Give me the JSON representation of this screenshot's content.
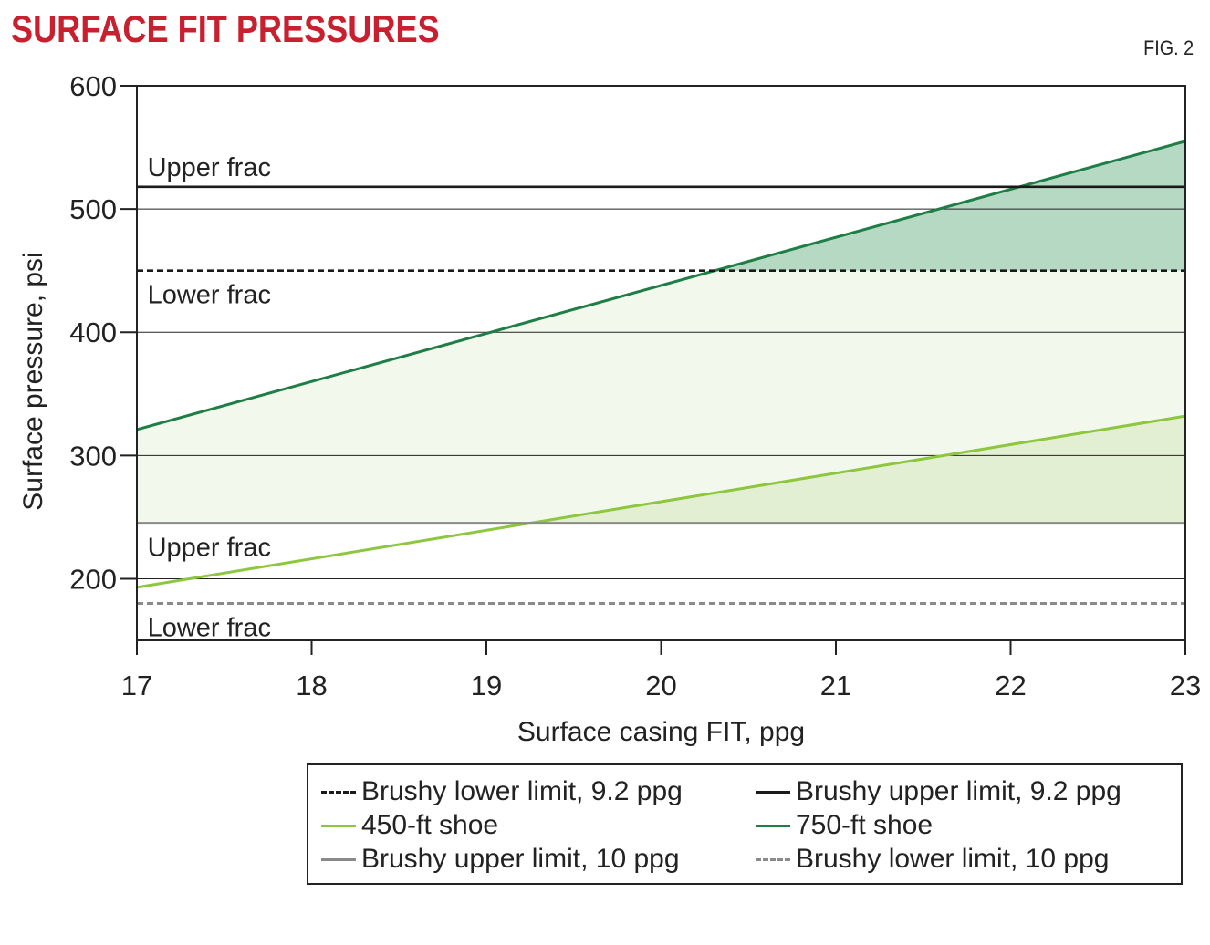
{
  "header": {
    "title": "SURFACE FIT PRESSURES",
    "figure_label": "FIG. 2"
  },
  "colors": {
    "title": "#c8202f",
    "dark_green": "#1e7e46",
    "light_green": "#8dc63f",
    "black": "#1a1a1a",
    "gray": "#8a8a8a",
    "fill_dark": "#b5d9c3",
    "fill_light": "#f3f8ec",
    "fill_mid": "#e2efd2"
  },
  "chart_data": {
    "type": "line",
    "title": "SURFACE FIT PRESSURES",
    "xlabel": "Surface casing FIT, ppg",
    "ylabel": "Surface pressure, psi",
    "xlim": [
      17,
      23
    ],
    "ylim": [
      150,
      600
    ],
    "x_ticks": [
      17,
      18,
      19,
      20,
      21,
      22,
      23
    ],
    "y_ticks": [
      200,
      300,
      400,
      500,
      600
    ],
    "grid": "horizontal",
    "series": [
      {
        "name": "450-ft shoe",
        "style": "solid",
        "color": "#8dc63f",
        "x": [
          17,
          23
        ],
        "y": [
          193,
          332
        ]
      },
      {
        "name": "750-ft shoe",
        "style": "solid",
        "color": "#1e7e46",
        "x": [
          17,
          23
        ],
        "y": [
          321,
          555
        ]
      },
      {
        "name": "Brushy lower limit, 9.2 ppg",
        "style": "dashed",
        "color": "#1a1a1a",
        "x": [
          17,
          23
        ],
        "y": [
          450,
          450
        ]
      },
      {
        "name": "Brushy upper limit, 9.2 ppg",
        "style": "solid",
        "color": "#1a1a1a",
        "x": [
          17,
          23
        ],
        "y": [
          518,
          518
        ]
      },
      {
        "name": "Brushy upper limit, 10 ppg",
        "style": "solid",
        "color": "#8a8a8a",
        "x": [
          17,
          23
        ],
        "y": [
          245,
          245
        ]
      },
      {
        "name": "Brushy lower limit, 10 ppg",
        "style": "dashed",
        "color": "#8a8a8a",
        "x": [
          17,
          23
        ],
        "y": [
          180,
          180
        ]
      }
    ],
    "annotations": [
      {
        "text": "Upper frac",
        "x": 17.05,
        "y": 518,
        "position": "above"
      },
      {
        "text": "Lower frac",
        "x": 17.05,
        "y": 450,
        "position": "below"
      },
      {
        "text": "Upper frac",
        "x": 17.05,
        "y": 245,
        "position": "below"
      },
      {
        "text": "Lower frac",
        "x": 17.05,
        "y": 180,
        "position": "below"
      }
    ],
    "legend": {
      "placement": "bottom-right",
      "entries": [
        "Brushy lower limit, 9.2 ppg",
        "Brushy upper limit, 9.2 ppg",
        "450-ft shoe",
        "750-ft shoe",
        "Brushy upper limit, 10 ppg",
        "Brushy lower limit, 10 ppg"
      ]
    }
  }
}
